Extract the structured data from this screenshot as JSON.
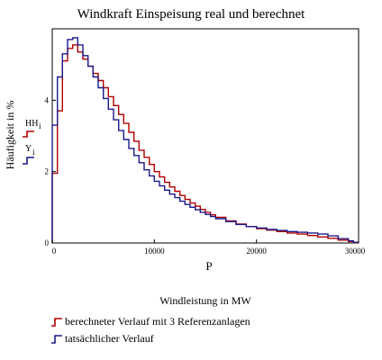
{
  "chart_data": {
    "type": "line",
    "style": "step",
    "title": "Windkraft Einspeisung real und berechnet",
    "xlabel": "P",
    "ylabel": "Häufigkeit in %",
    "x_caption": "Windleistung in MW",
    "xlim": [
      0,
      30000
    ],
    "ylim": [
      0,
      6
    ],
    "x_ticks": [
      "0",
      "10000",
      "20000",
      "30000"
    ],
    "y_ticks": [
      "0",
      "2",
      "4"
    ],
    "trace_labels": [
      {
        "name": "HH",
        "sub": "i",
        "color": "#b00000"
      },
      {
        "name": "Y",
        "sub": "i",
        "color": "#1a1a8c"
      }
    ],
    "series": [
      {
        "name": "berechneter Verlauf mit 3 Referenzanlagen",
        "color": "#b00000",
        "x": [
          0,
          500,
          1000,
          1500,
          2000,
          2500,
          3000,
          3500,
          4000,
          4500,
          5000,
          5500,
          6000,
          6500,
          7000,
          7500,
          8000,
          8500,
          9000,
          9500,
          10000,
          10500,
          11000,
          11500,
          12000,
          12500,
          13000,
          13500,
          14000,
          14500,
          15000,
          15500,
          16000,
          17000,
          18000,
          19000,
          20000,
          21000,
          22000,
          23000,
          24000,
          25000,
          26000,
          27000,
          28000,
          29000,
          29500
        ],
        "values": [
          1.95,
          3.7,
          5.1,
          5.45,
          5.55,
          5.35,
          5.15,
          4.95,
          4.75,
          4.55,
          4.35,
          4.1,
          3.85,
          3.6,
          3.35,
          3.1,
          2.85,
          2.6,
          2.4,
          2.2,
          2.0,
          1.85,
          1.7,
          1.57,
          1.45,
          1.33,
          1.22,
          1.12,
          1.03,
          0.94,
          0.86,
          0.79,
          0.72,
          0.62,
          0.53,
          0.46,
          0.4,
          0.36,
          0.32,
          0.28,
          0.25,
          0.21,
          0.17,
          0.13,
          0.08,
          0.04,
          0.01
        ]
      },
      {
        "name": "tatsächlicher Verlauf",
        "color": "#1a1a8c",
        "x": [
          0,
          500,
          1000,
          1500,
          2000,
          2500,
          3000,
          3500,
          4000,
          4500,
          5000,
          5500,
          6000,
          6500,
          7000,
          7500,
          8000,
          8500,
          9000,
          9500,
          10000,
          10500,
          11000,
          11500,
          12000,
          12500,
          13000,
          13500,
          14000,
          14500,
          15000,
          15500,
          16000,
          17000,
          18000,
          19000,
          20000,
          21000,
          22000,
          23000,
          24000,
          25000,
          26000,
          27000,
          28000,
          29000,
          29500
        ],
        "values": [
          3.3,
          4.65,
          5.3,
          5.7,
          5.75,
          5.55,
          5.25,
          4.95,
          4.65,
          4.35,
          4.05,
          3.75,
          3.45,
          3.15,
          2.9,
          2.65,
          2.45,
          2.25,
          2.05,
          1.88,
          1.73,
          1.6,
          1.48,
          1.37,
          1.27,
          1.17,
          1.08,
          1.0,
          0.93,
          0.86,
          0.8,
          0.74,
          0.68,
          0.6,
          0.52,
          0.46,
          0.42,
          0.38,
          0.35,
          0.32,
          0.3,
          0.28,
          0.25,
          0.2,
          0.12,
          0.06,
          0.02
        ]
      }
    ],
    "legend_position": "bottom-left",
    "grid": false
  }
}
